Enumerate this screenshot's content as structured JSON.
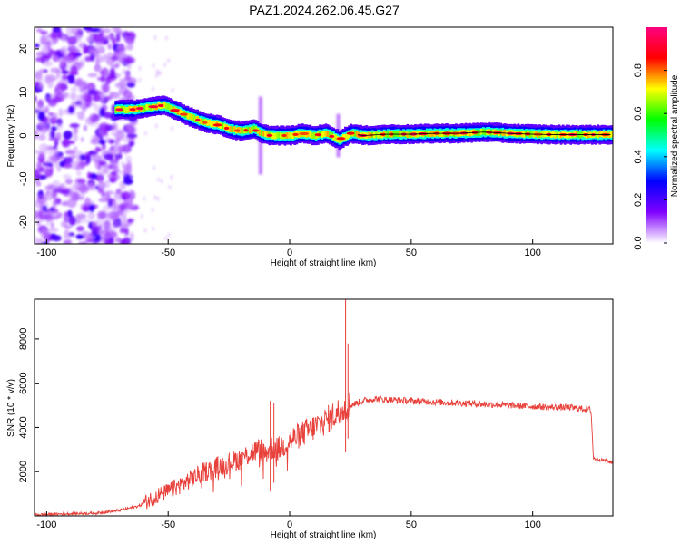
{
  "title": "PAZ1.2024.262.06.45.G27",
  "chart_data": [
    {
      "type": "heatmap",
      "xlabel": "Height of straight line (km)",
      "ylabel": "Frequency (Hz)",
      "xlim": [
        -105,
        133
      ],
      "ylim": [
        -25,
        25
      ],
      "x_ticks": [
        -100,
        -50,
        0,
        50,
        100
      ],
      "y_ticks": [
        -20,
        -10,
        0,
        10,
        20
      ],
      "colorbar": {
        "label": "Normalized spectral amplitude",
        "range": [
          0,
          1
        ],
        "ticks": [
          "0.0",
          "0.2",
          "0.4",
          "0.6",
          "0.8"
        ],
        "tick_values": [
          0,
          0.2,
          0.4,
          0.6,
          0.8
        ],
        "colormap": [
          "#ffffff",
          "#8000ff",
          "#0000ff",
          "#00ffff",
          "#00ff00",
          "#ffff00",
          "#ff0000",
          "#ff0080"
        ]
      },
      "ridge": {
        "x": [
          -72,
          -65,
          -58,
          -52,
          -48,
          -44,
          -40,
          -35,
          -30,
          -25,
          -20,
          -15,
          -12,
          -8,
          -4,
          0,
          5,
          10,
          15,
          20,
          25,
          30,
          40,
          50,
          60,
          70,
          80,
          90,
          100,
          110,
          120,
          133
        ],
        "frequency_hz": [
          6.0,
          6.0,
          6.5,
          7.0,
          6.0,
          5.0,
          4.0,
          3.0,
          2.5,
          1.5,
          1.0,
          1.5,
          0.5,
          0.0,
          0.0,
          0.0,
          0.5,
          0.0,
          0.5,
          -1.0,
          0.5,
          0.0,
          0.3,
          0.3,
          0.5,
          0.5,
          0.8,
          0.5,
          0.3,
          0.2,
          0.2,
          0.2
        ]
      },
      "noise_region_x": [
        -105,
        -70
      ]
    },
    {
      "type": "line",
      "xlabel": "Height of straight line (km)",
      "ylabel": "SNR (10 * v/v)",
      "xlim": [
        -105,
        133
      ],
      "ylim": [
        0,
        9800
      ],
      "x_ticks": [
        -100,
        -50,
        0,
        50,
        100
      ],
      "y_ticks": [
        2000,
        4000,
        6000,
        8000
      ],
      "color": "#e8403a",
      "x": [
        -105,
        -90,
        -80,
        -70,
        -62,
        -55,
        -50,
        -45,
        -40,
        -35,
        -30,
        -25,
        -20,
        -15,
        -12,
        -10,
        -8,
        -5,
        0,
        5,
        10,
        15,
        20,
        22,
        25,
        30,
        35,
        40,
        50,
        60,
        70,
        80,
        90,
        100,
        110,
        115,
        120,
        124,
        125,
        130,
        133
      ],
      "y": [
        50,
        100,
        120,
        250,
        450,
        900,
        1100,
        1400,
        1700,
        2000,
        2200,
        2400,
        2600,
        2900,
        3000,
        2800,
        3100,
        3000,
        3400,
        3700,
        4000,
        4300,
        4700,
        4900,
        5000,
        5200,
        5300,
        5250,
        5200,
        5150,
        5100,
        5050,
        5000,
        4950,
        4900,
        4900,
        4850,
        4800,
        2600,
        2500,
        2400
      ]
    }
  ]
}
